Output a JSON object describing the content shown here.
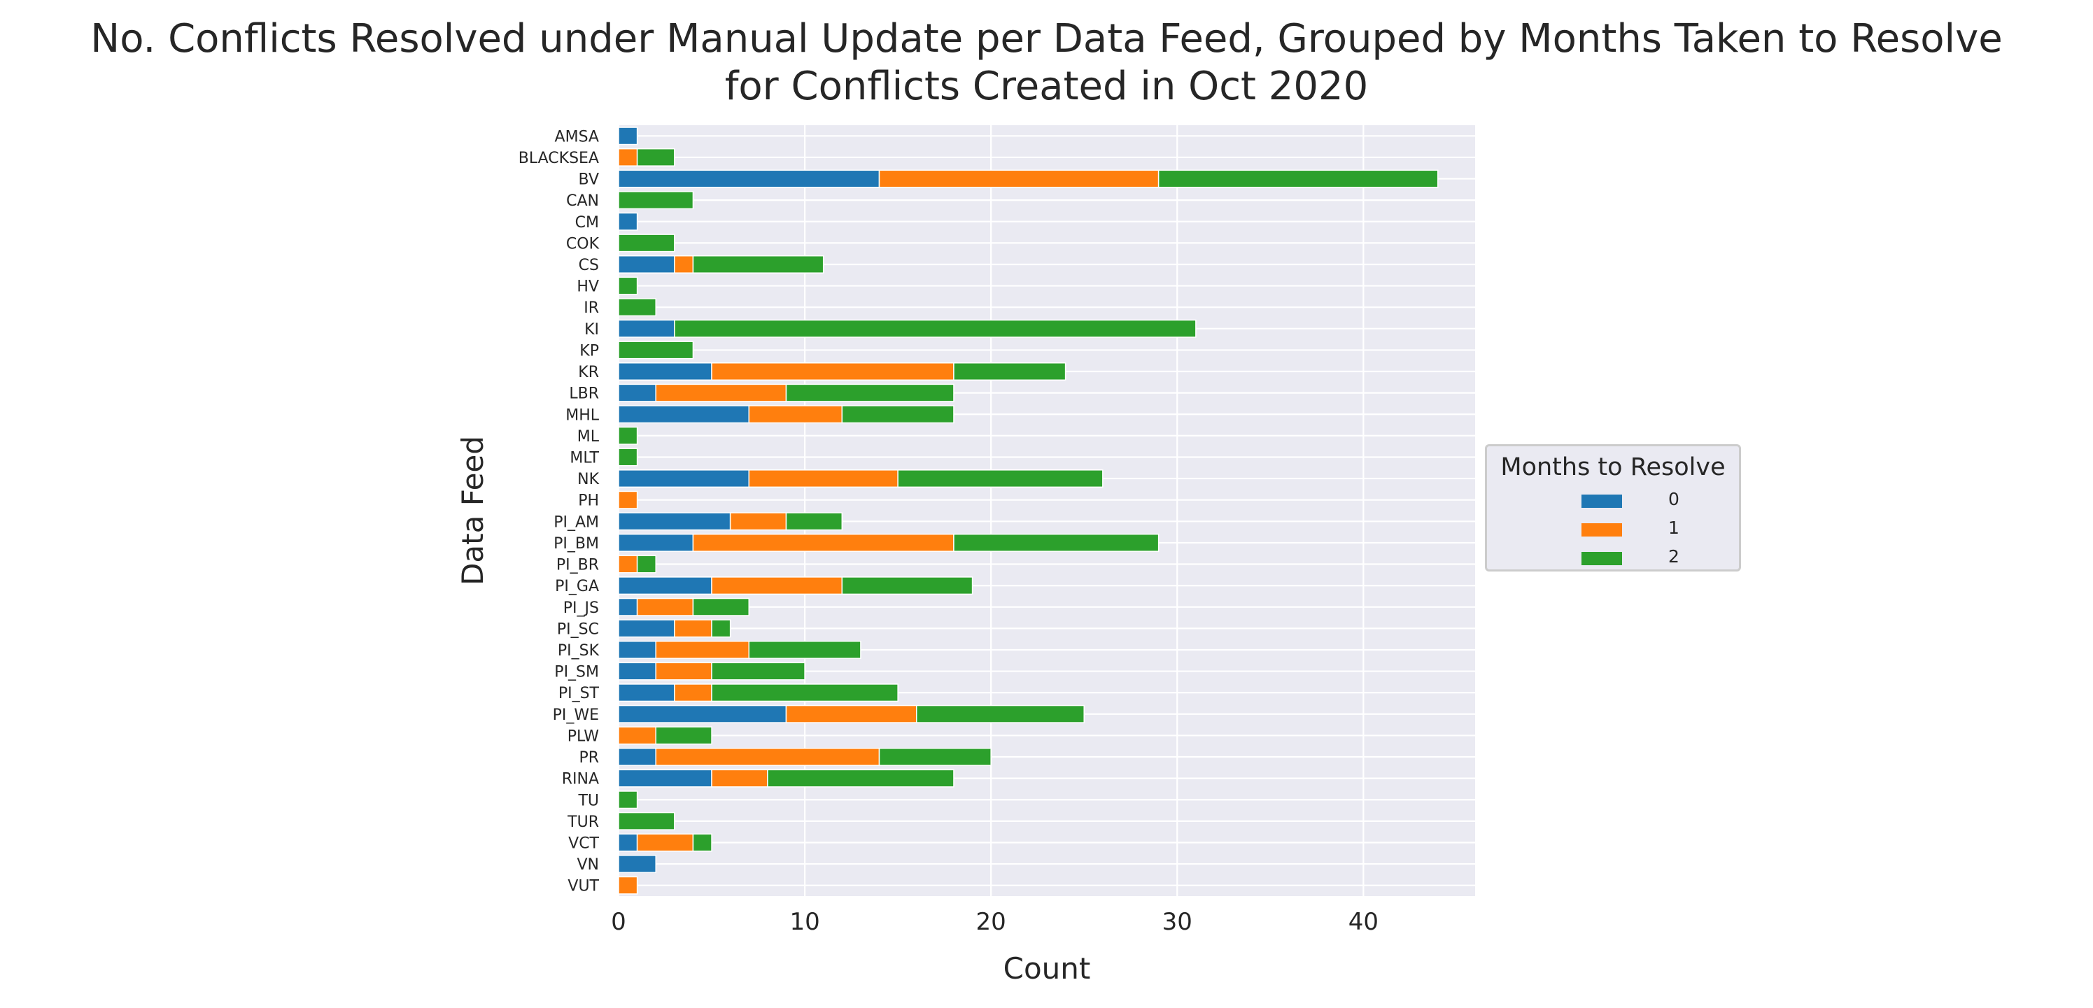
{
  "title_lines": [
    "No. Conflicts Resolved under Manual Update per Data Feed, Grouped by Months Taken to Resolve",
    "for Conflicts Created in Oct 2020"
  ],
  "chart_data": {
    "type": "bar",
    "orientation": "horizontal",
    "stacked": true,
    "xlabel": "Count",
    "ylabel": "Data Feed",
    "xlim": [
      0,
      46
    ],
    "xticks": [
      0,
      10,
      20,
      30,
      40
    ],
    "grid": true,
    "legend_title": "Months to Resolve",
    "legend_position": "right",
    "categories": [
      "AMSA",
      "BLACKSEA",
      "BV",
      "CAN",
      "CM",
      "COK",
      "CS",
      "HV",
      "IR",
      "KI",
      "KP",
      "KR",
      "LBR",
      "MHL",
      "ML",
      "MLT",
      "NK",
      "PH",
      "PI_AM",
      "PI_BM",
      "PI_BR",
      "PI_GA",
      "PI_JS",
      "PI_SC",
      "PI_SK",
      "PI_SM",
      "PI_ST",
      "PI_WE",
      "PLW",
      "PR",
      "RINA",
      "TU",
      "TUR",
      "VCT",
      "VN",
      "VUT"
    ],
    "series": [
      {
        "name": "0",
        "color": "#1f77b4",
        "values": [
          1,
          0,
          14,
          0,
          1,
          0,
          3,
          0,
          0,
          3,
          0,
          5,
          2,
          7,
          0,
          0,
          7,
          0,
          6,
          4,
          0,
          5,
          1,
          3,
          2,
          2,
          3,
          9,
          0,
          2,
          5,
          0,
          0,
          1,
          2,
          0
        ]
      },
      {
        "name": "1",
        "color": "#ff7f0e",
        "values": [
          0,
          1,
          15,
          0,
          0,
          0,
          1,
          0,
          0,
          0,
          0,
          13,
          7,
          5,
          0,
          0,
          8,
          1,
          3,
          14,
          1,
          7,
          3,
          2,
          5,
          3,
          2,
          7,
          2,
          12,
          3,
          0,
          0,
          3,
          0,
          1
        ]
      },
      {
        "name": "2",
        "color": "#2ca02c",
        "values": [
          0,
          2,
          15,
          4,
          0,
          3,
          7,
          1,
          2,
          28,
          4,
          6,
          9,
          6,
          1,
          1,
          11,
          0,
          3,
          11,
          1,
          7,
          3,
          1,
          6,
          5,
          10,
          9,
          3,
          6,
          10,
          1,
          3,
          1,
          0,
          0
        ]
      }
    ],
    "plot_background": "#eaeaf2",
    "grid_color": "#ffffff"
  }
}
